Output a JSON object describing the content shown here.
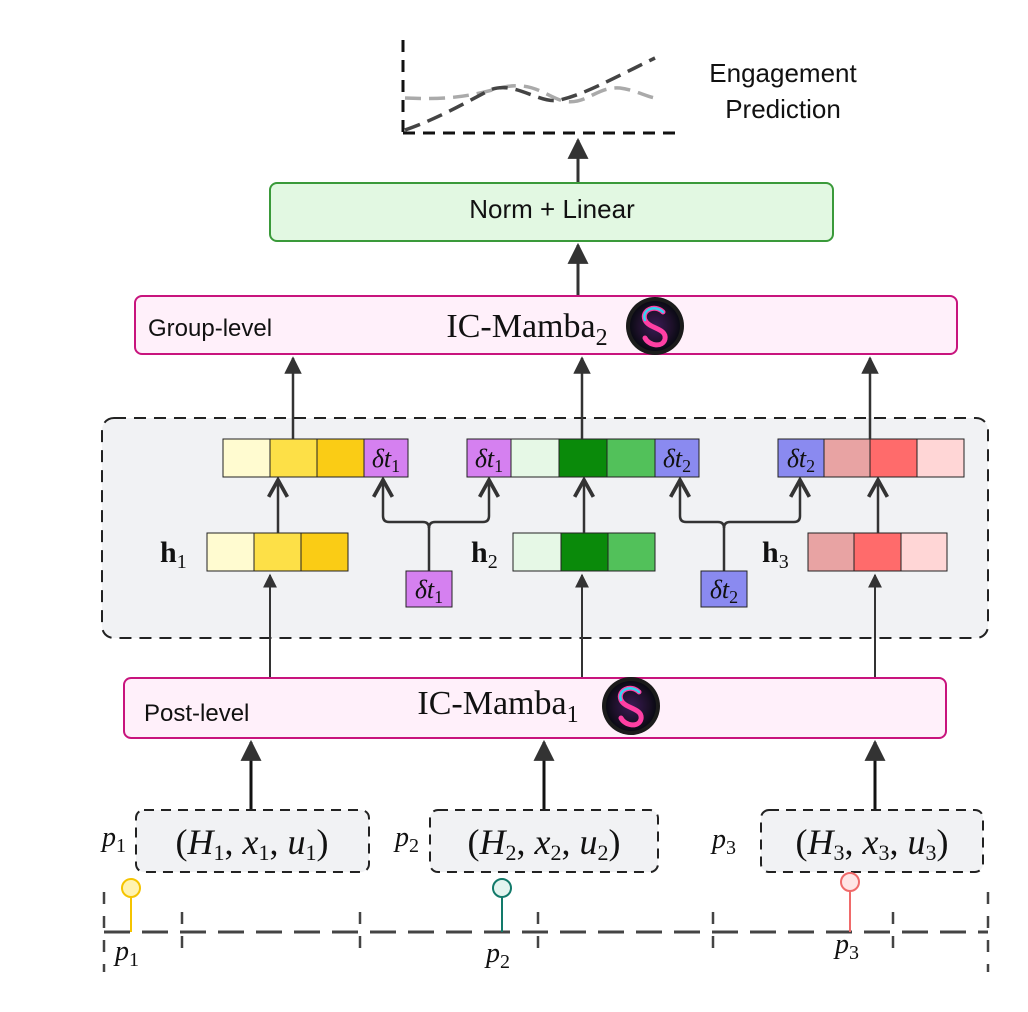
{
  "output": {
    "title_line1": "Engagement",
    "title_line2": "Prediction"
  },
  "head": {
    "label": "Norm + Linear"
  },
  "group_block": {
    "level_label": "Group-level",
    "model_name": "IC-Mamba",
    "model_subscript": "2"
  },
  "post_block": {
    "level_label": "Post-level",
    "model_name": "IC-Mamba",
    "model_subscript": "1"
  },
  "hidden_states": [
    {
      "symbol": "h",
      "sub": "1",
      "colors": [
        "#FFFBD0",
        "#FDE047",
        "#FACC15"
      ]
    },
    {
      "symbol": "h",
      "sub": "2",
      "colors": [
        "#E6F8E6",
        "#0A8A0A",
        "#52C15A"
      ]
    },
    {
      "symbol": "h",
      "sub": "3",
      "colors": [
        "#E8A3A3",
        "#FF6B6B",
        "#FFD6D6"
      ]
    }
  ],
  "time_deltas": [
    {
      "symbol": "δt",
      "sub": "1",
      "color": "#D580F0"
    },
    {
      "symbol": "δt",
      "sub": "2",
      "color": "#8A8AF0"
    }
  ],
  "posts": [
    {
      "p": "p",
      "p_sub": "1",
      "H": "H",
      "x": "x",
      "u": "u",
      "sub": "1",
      "pin_color": "#F5C400",
      "pin_fill": "#FFF3B0"
    },
    {
      "p": "p",
      "p_sub": "2",
      "H": "H",
      "x": "x",
      "u": "u",
      "sub": "2",
      "pin_color": "#127A6A",
      "pin_fill": "#E3F4EF"
    },
    {
      "p": "p",
      "p_sub": "3",
      "H": "H",
      "x": "x",
      "u": "u",
      "sub": "3",
      "pin_color": "#F06A6A",
      "pin_fill": "#FFE5E5"
    }
  ],
  "colors": {
    "mamba_border": "#C8147D",
    "mamba_fill": "#FFF0FA",
    "head_border": "#3A9A3A",
    "head_fill": "#E2F8E2",
    "panel_fill": "#F1F2F4",
    "arrow": "#333333"
  }
}
